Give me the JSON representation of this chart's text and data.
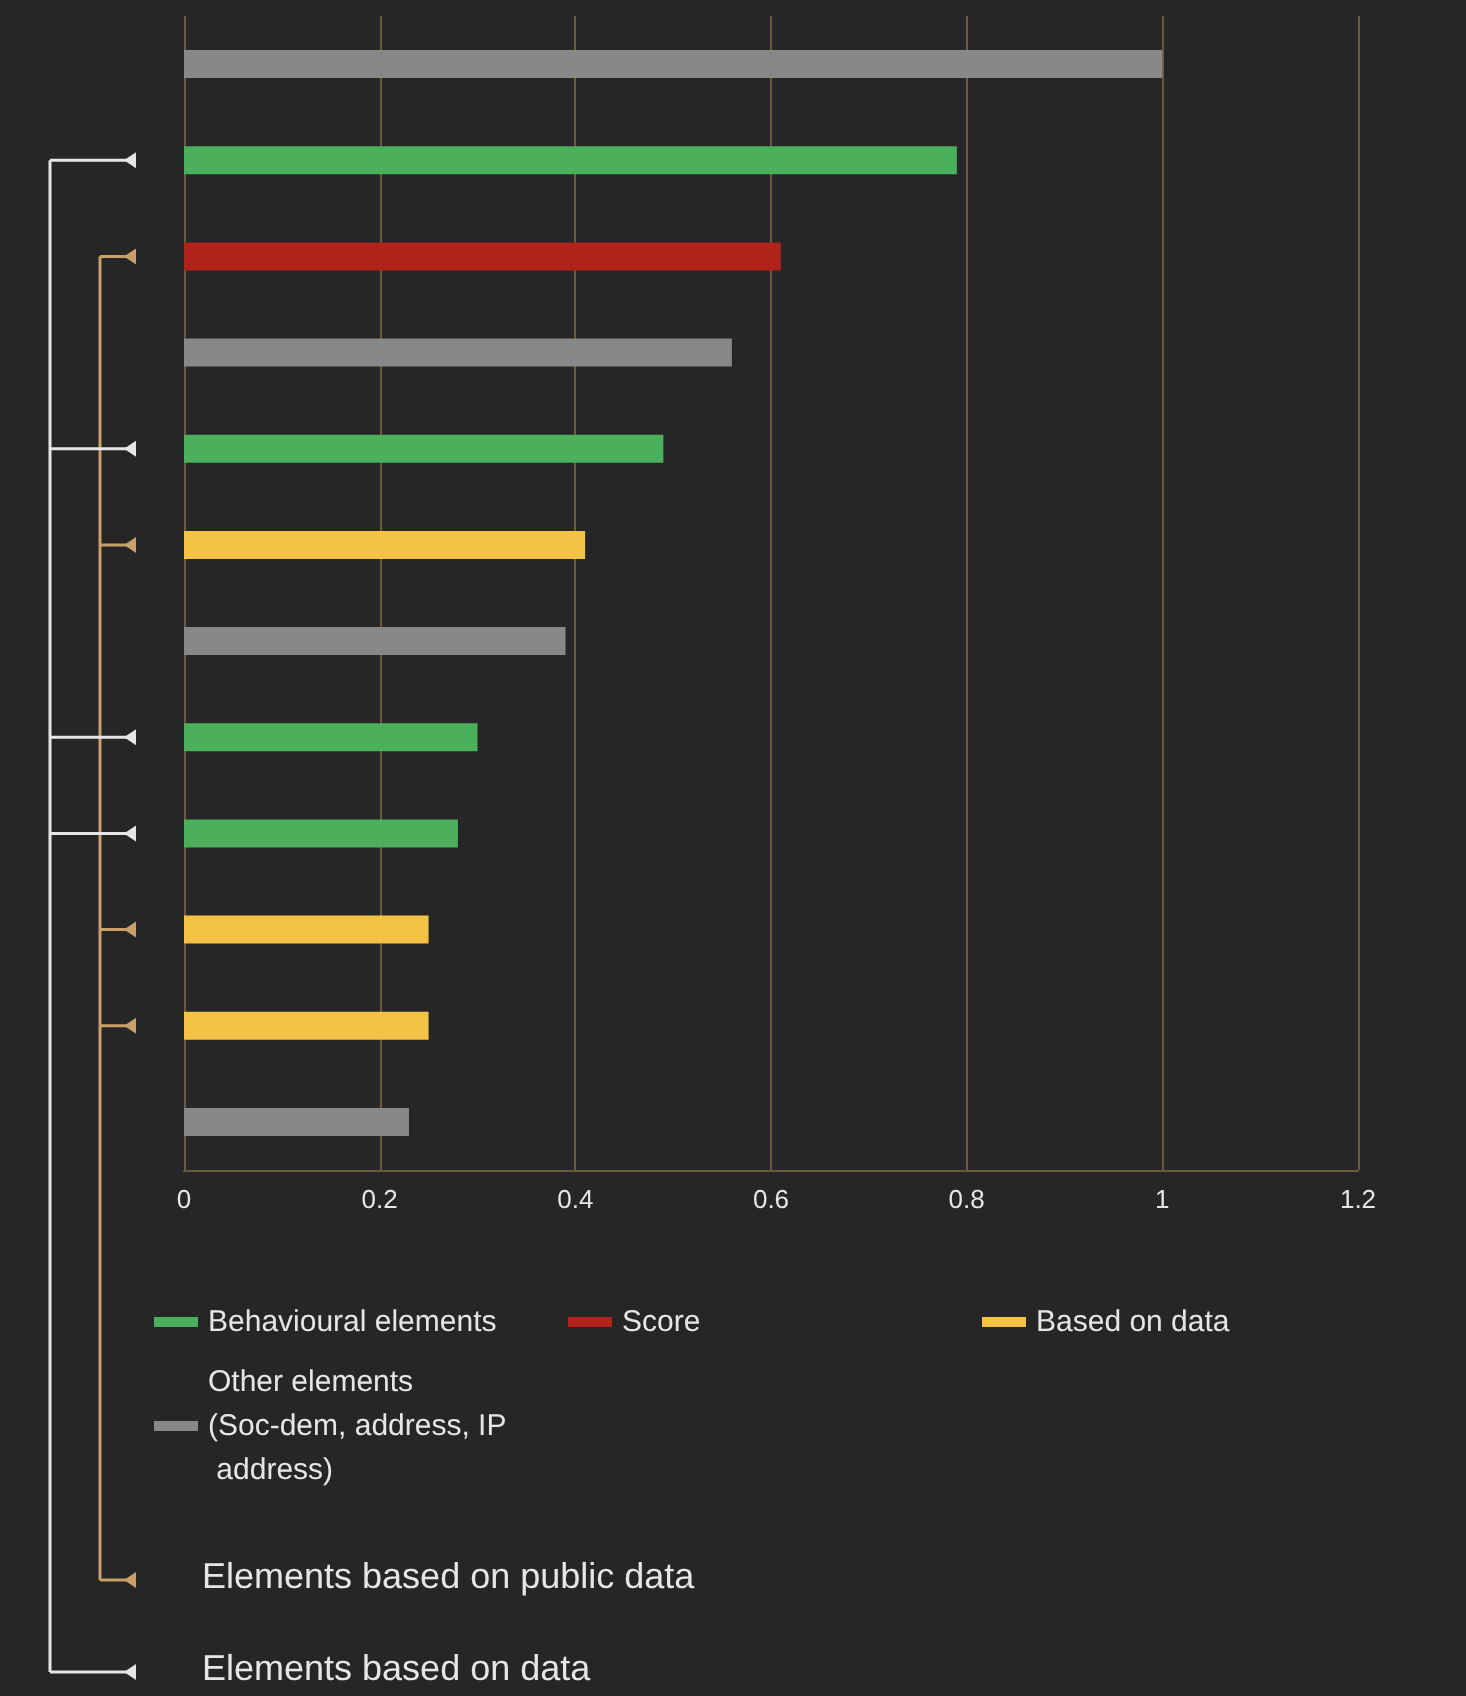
{
  "chart_data": {
    "type": "bar",
    "orientation": "horizontal",
    "categories": [
      null,
      null,
      null,
      null,
      null,
      null,
      null,
      null,
      null,
      null,
      null,
      null
    ],
    "series": [
      {
        "name": "Behavioural elements",
        "color": "#4caf5c",
        "values": [
          null,
          0.79,
          null,
          null,
          0.49,
          null,
          null,
          0.3,
          0.28,
          null,
          null,
          null
        ]
      },
      {
        "name": "Score",
        "color": "#b0241b",
        "values": [
          null,
          null,
          0.61,
          null,
          null,
          null,
          null,
          null,
          null,
          null,
          null,
          null
        ]
      },
      {
        "name": "Based on data",
        "color": "#f4c244",
        "values": [
          null,
          null,
          null,
          null,
          null,
          0.41,
          null,
          null,
          null,
          0.25,
          0.25,
          null
        ]
      },
      {
        "name": "Other elements (Soc-dem, address, IP address)",
        "color": "#888888",
        "values": [
          1,
          null,
          null,
          0.56,
          null,
          null,
          0.39,
          null,
          null,
          null,
          null,
          0.23
        ]
      }
    ],
    "xlim": [
      0,
      1.2
    ],
    "xticks": [
      0,
      0.2,
      0.4,
      0.6,
      0.8,
      1,
      1.2
    ],
    "grid": "x",
    "legend": "bottom",
    "annotations": [
      "Elements based on public data",
      "Elements based on data"
    ]
  }
}
